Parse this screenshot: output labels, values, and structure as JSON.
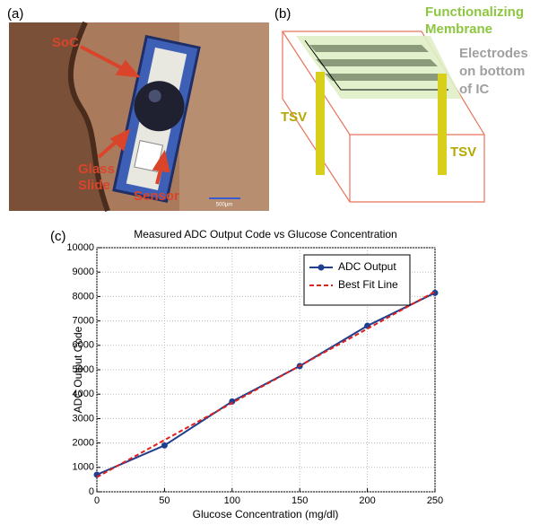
{
  "panel_a": {
    "label": "(a)",
    "soc": "SoC",
    "glass_slide": [
      "Glass",
      "Slide"
    ],
    "sensor": "Sensor",
    "scale_bar": "500μm"
  },
  "panel_b": {
    "label": "(b)",
    "membrane": [
      "Functionalizing",
      "Membrane"
    ],
    "electrodes": [
      "Electrodes",
      "on bottom",
      "of IC"
    ],
    "tsv_left": "TSV",
    "tsv_right": "TSV"
  },
  "panel_c_label": "(c)",
  "chart_data": {
    "type": "line",
    "title": "Measured ADC Output Code vs Glucose Concentration",
    "x_label": "Glucose Concentration (mg/dl)",
    "y_label": "ADC Output Code",
    "x": [
      0,
      50,
      100,
      150,
      200,
      250
    ],
    "series": [
      {
        "name": "ADC Output",
        "color": "#1f3f8f",
        "line_style": "solid",
        "marker": "circle",
        "values": [
          700,
          1900,
          3700,
          5150,
          6800,
          8150
        ]
      },
      {
        "name": "Best Fit Line",
        "color": "#e0201b",
        "line_style": "dashed",
        "marker": "none",
        "values": [
          600,
          2120,
          3640,
          5160,
          6680,
          8200
        ]
      }
    ],
    "xlim": [
      0,
      250
    ],
    "xticks": [
      0,
      50,
      100,
      150,
      200,
      250
    ],
    "ylim": [
      0,
      10000
    ],
    "yticks": [
      0,
      1000,
      2000,
      3000,
      4000,
      5000,
      6000,
      7000,
      8000,
      9000,
      10000
    ],
    "grid": true,
    "legend": "upper-right"
  }
}
